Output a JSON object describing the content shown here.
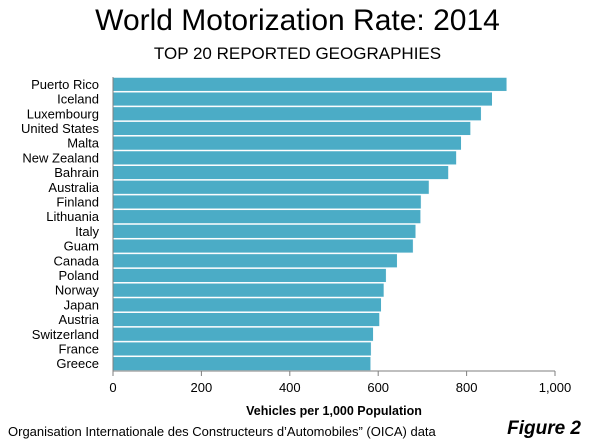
{
  "title": "World Motorization Rate: 2014",
  "subtitle": "TOP 20 REPORTED GEOGRAPHIES",
  "source": "Organisation Internationale des Constructeurs d’Automobiles” (OICA) data",
  "figure_label": "Figure 2",
  "colors": {
    "bar": "#4bacc6",
    "bar_edge": "#ffffff",
    "axis": "#7f7f7f"
  },
  "chart_data": {
    "type": "bar",
    "orientation": "horizontal",
    "title": "World Motorization Rate: 2014",
    "subtitle": "TOP 20 REPORTED GEOGRAPHIES",
    "xlabel": "Vehicles per 1,000 Population",
    "ylabel": "",
    "xlim": [
      0,
      1000
    ],
    "xticks": [
      "0",
      "200",
      "400",
      "600",
      "800",
      "1,000"
    ],
    "grid": false,
    "categories": [
      "Puerto Rico",
      "Iceland",
      "Luxembourg",
      "United States",
      "Malta",
      "New Zealand",
      "Bahrain",
      "Australia",
      "Finland",
      "Lithuania",
      "Italy",
      "Guam",
      "Canada",
      "Poland",
      "Norway",
      "Japan",
      "Austria",
      "Switzerland",
      "France",
      "Greece"
    ],
    "values": [
      891,
      858,
      833,
      809,
      788,
      777,
      759,
      715,
      697,
      696,
      685,
      679,
      643,
      618,
      613,
      607,
      603,
      589,
      584,
      583
    ]
  }
}
